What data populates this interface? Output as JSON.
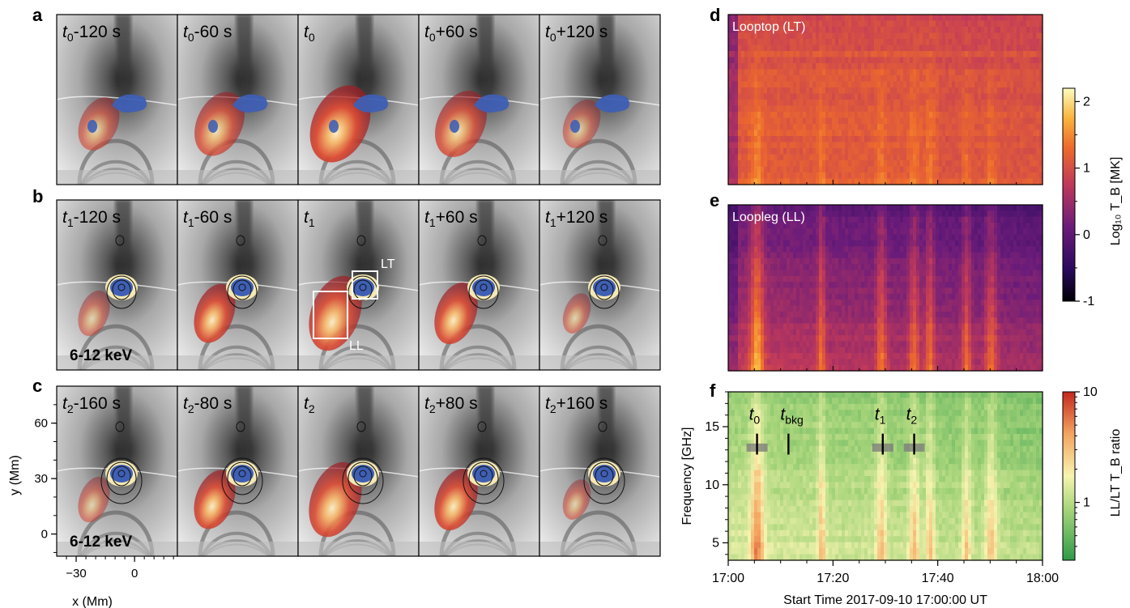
{
  "panel_letters": [
    "a",
    "b",
    "c",
    "d",
    "e",
    "f"
  ],
  "rows": [
    {
      "id": "a",
      "ref": "t",
      "sub": "0",
      "offsets": [
        "-120 s",
        "-60 s",
        "",
        "+60 s",
        "+120 s"
      ],
      "energy": "",
      "contour_rings": 0
    },
    {
      "id": "b",
      "ref": "t",
      "sub": "1",
      "offsets": [
        "-120 s",
        "-60 s",
        "",
        "+60 s",
        "+120 s"
      ],
      "energy": "6-12 keV",
      "contour_rings": 3
    },
    {
      "id": "c",
      "ref": "t",
      "sub": "2",
      "offsets": [
        "-160 s",
        "-80 s",
        "",
        "+80 s",
        "+160 s"
      ],
      "energy": "6-12 keV",
      "contour_rings": 4
    }
  ],
  "box_labels": {
    "lt": "LT",
    "ll": "LL"
  },
  "image_axes": {
    "xlabel": "x (Mm)",
    "ylabel": "y (Mm)",
    "xticks": [
      -30,
      0
    ],
    "yticks": [
      0,
      30,
      60
    ],
    "xrange": [
      -40,
      22
    ],
    "yrange": [
      -12,
      80
    ]
  },
  "spectrogram_panels": [
    {
      "id": "d",
      "title": "Looptop (LT)"
    },
    {
      "id": "e",
      "title": "Loopleg (LL)"
    }
  ],
  "colorbar_temp": {
    "label": "Log₁₀ T_B [MK]",
    "ticks": [
      -1,
      0,
      1,
      2
    ],
    "range": [
      -1,
      2.2
    ]
  },
  "colorbar_ratio": {
    "label": "LL/LT T_B ratio",
    "ticks": [
      1,
      10
    ],
    "range": [
      0.3,
      10
    ]
  },
  "chart_data": {
    "type": "heatmap",
    "xlabel": "Start Time 2017-09-10 17:00:00 UT",
    "ylabel": "Frequency [GHz]",
    "xticks": [
      "17:00",
      "17:20",
      "17:40",
      "18:00"
    ],
    "xlim_minutes": [
      0,
      60
    ],
    "yticks": [
      5,
      10,
      15
    ],
    "ylim": [
      3.5,
      18
    ],
    "markers": [
      {
        "name": "t",
        "sub": "0",
        "minute": 5.5
      },
      {
        "name": "t",
        "sub": "bkg",
        "minute": 11.5
      },
      {
        "name": "t",
        "sub": "1",
        "minute": 29.5
      },
      {
        "name": "t",
        "sub": "2",
        "minute": 35.5
      }
    ]
  },
  "colors": {
    "blue_source": "#3f5fb4",
    "pale_source": "#f4e8b4",
    "red_source": "#b8282a",
    "orange_source": "#f2944a",
    "green_low": "#2e9a4a",
    "red_high": "#c4281e"
  }
}
